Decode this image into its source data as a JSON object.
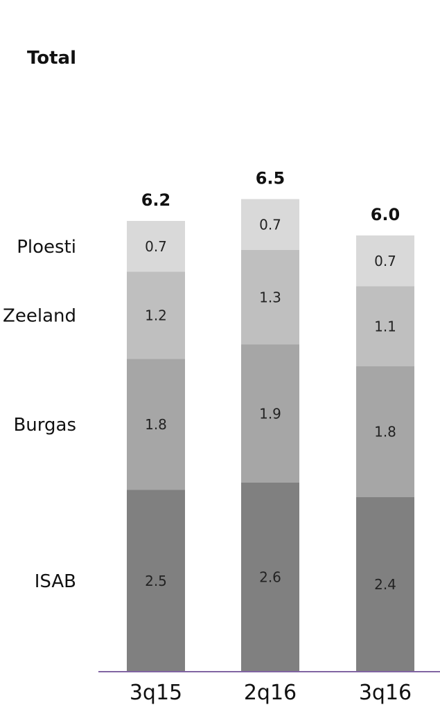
{
  "chart_data": {
    "type": "bar",
    "stacked": true,
    "categories": [
      "3q15",
      "2q16",
      "3q16"
    ],
    "series": [
      {
        "name": "ISAB",
        "values": [
          2.5,
          2.6,
          2.4
        ],
        "color": "#808080"
      },
      {
        "name": "Burgas",
        "values": [
          1.8,
          1.9,
          1.8
        ],
        "color": "#a6a6a6"
      },
      {
        "name": "Zeeland",
        "values": [
          1.2,
          1.3,
          1.1
        ],
        "color": "#bfbfbf"
      },
      {
        "name": "Ploesti",
        "values": [
          0.7,
          0.7,
          0.7
        ],
        "color": "#d9d9d9"
      }
    ],
    "totals": [
      "6.2",
      "6.5",
      "6.0"
    ],
    "totals_label": "Total",
    "value_labels": [
      [
        "2.5",
        "1.8",
        "1.2",
        "0.7"
      ],
      [
        "2.6",
        "1.9",
        "1.3",
        "0.7"
      ],
      [
        "2.4",
        "1.8",
        "1.1",
        "0.7"
      ]
    ],
    "axis_line_color": "#8064a2",
    "grid": false,
    "legend_position": "left"
  }
}
